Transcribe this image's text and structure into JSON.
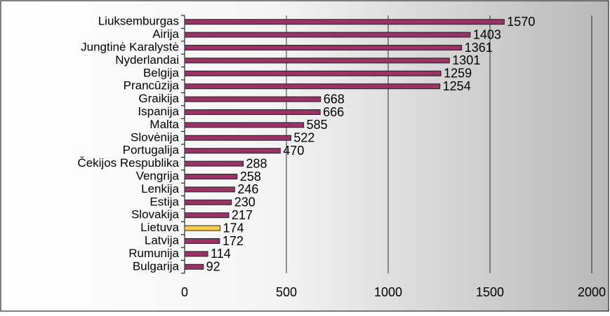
{
  "chart_data": {
    "type": "hbar",
    "categories": [
      "Liuksemburgas",
      "Airija",
      "Jungtinė Karalystė",
      "Nyderlandai",
      "Belgija",
      "Prancūzija",
      "Graikija",
      "Ispanija",
      "Malta",
      "Slovėnija",
      "Portugalija",
      "Čekijos Respublika",
      "Vengrija",
      "Lenkija",
      "Estija",
      "Slovakija",
      "Lietuva",
      "Latvija",
      "Rumunija",
      "Bulgarija"
    ],
    "values": [
      1570,
      1403,
      1361,
      1301,
      1259,
      1254,
      668,
      666,
      585,
      522,
      470,
      288,
      258,
      246,
      230,
      217,
      174,
      172,
      114,
      92
    ],
    "colors": [
      "#993366",
      "#993366",
      "#993366",
      "#993366",
      "#993366",
      "#993366",
      "#993366",
      "#993366",
      "#993366",
      "#993366",
      "#993366",
      "#993366",
      "#993366",
      "#993366",
      "#993366",
      "#993366",
      "#ffcc44",
      "#993366",
      "#993366",
      "#993366"
    ],
    "xlim": [
      0,
      2000
    ],
    "xticks": [
      0,
      500,
      1000,
      1500,
      2000
    ],
    "grid": true
  }
}
